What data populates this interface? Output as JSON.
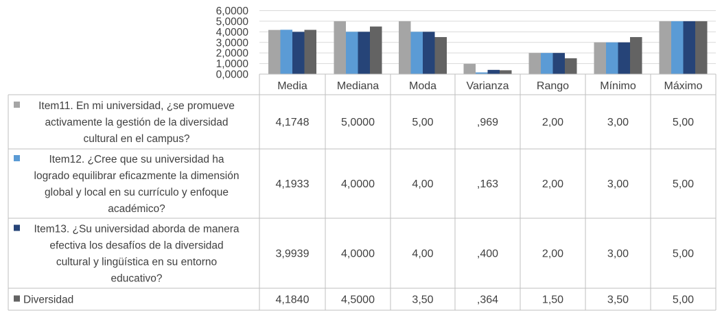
{
  "chart_data": {
    "type": "bar",
    "title": "",
    "xlabel": "",
    "ylabel": "",
    "ylim": [
      0,
      6
    ],
    "yticks": [
      "0,0000",
      "1,0000",
      "2,0000",
      "3,0000",
      "4,0000",
      "5,0000",
      "6,0000"
    ],
    "grid": true,
    "legend_placement": "data-table",
    "categories": [
      "Media",
      "Mediana",
      "Moda",
      "Varianza",
      "Rango",
      "Mínimo",
      "Máximo"
    ],
    "series": [
      {
        "name": "Item11. En mi universidad, ¿se promueve activamente la gestión de la diversidad cultural en el campus?",
        "name_lines": [
          "Item11. En mi universidad, ¿se promueve",
          "activamente la gestión de la diversidad",
          "cultural en el campus?"
        ],
        "color": "#a5a5a5",
        "values": [
          4.1748,
          5.0,
          5.0,
          0.969,
          2.0,
          3.0,
          5.0
        ],
        "labels": [
          "4,1748",
          "5,0000",
          "5,00",
          ",969",
          "2,00",
          "3,00",
          "5,00"
        ]
      },
      {
        "name": "Item12. ¿Cree que su universidad ha logrado equilibrar eficazmente la dimensión global y local en su currículo y enfoque académico?",
        "name_lines": [
          "Item12. ¿Cree que su universidad ha",
          "logrado equilibrar eficazmente la dimensión",
          "global y local en su currículo y enfoque",
          "académico?"
        ],
        "color": "#5b9bd5",
        "values": [
          4.1933,
          4.0,
          4.0,
          0.163,
          2.0,
          3.0,
          5.0
        ],
        "labels": [
          "4,1933",
          "4,0000",
          "4,00",
          ",163",
          "2,00",
          "3,00",
          "5,00"
        ]
      },
      {
        "name": "Item13. ¿Su universidad aborda de manera efectiva los desafíos de la diversidad cultural y lingüística en su entorno educativo?",
        "name_lines": [
          "Item13. ¿Su universidad aborda de manera",
          "efectiva los desafíos de la diversidad",
          "cultural y lingüística en su entorno",
          "educativo?"
        ],
        "color": "#264478",
        "values": [
          3.9939,
          4.0,
          4.0,
          0.4,
          2.0,
          3.0,
          5.0
        ],
        "labels": [
          "3,9939",
          "4,0000",
          "4,00",
          ",400",
          "2,00",
          "3,00",
          "5,00"
        ]
      },
      {
        "name": "Diversidad",
        "name_lines": [
          "Diversidad"
        ],
        "color": "#636363",
        "values": [
          4.184,
          4.5,
          3.5,
          0.364,
          1.5,
          3.5,
          5.0
        ],
        "labels": [
          "4,1840",
          "4,5000",
          "3,50",
          ",364",
          "1,50",
          "3,50",
          "5,00"
        ]
      }
    ]
  }
}
